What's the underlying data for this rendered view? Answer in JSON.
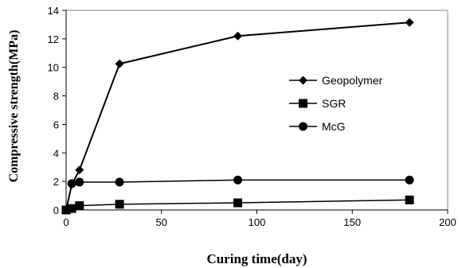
{
  "chart_data": {
    "type": "line",
    "title": "",
    "xlabel": "Curing time(day)",
    "ylabel": "Compressive strength(MPa)",
    "xlim": [
      0,
      200
    ],
    "ylim": [
      0,
      14
    ],
    "xticks": [
      0,
      50,
      100,
      150,
      200
    ],
    "yticks": [
      0,
      2,
      4,
      6,
      8,
      10,
      12,
      14
    ],
    "grid": false,
    "legend": "right",
    "series": [
      {
        "name": "Geopolymer",
        "marker": "diamond",
        "color": "#000000",
        "x": [
          0,
          3,
          7,
          28,
          90,
          180
        ],
        "y": [
          0,
          1.8,
          2.8,
          10.25,
          12.2,
          13.15
        ]
      },
      {
        "name": "SGR",
        "marker": "square",
        "color": "#000000",
        "x": [
          0,
          3,
          7,
          28,
          90,
          180
        ],
        "y": [
          0,
          0.1,
          0.3,
          0.4,
          0.5,
          0.7
        ]
      },
      {
        "name": "McG",
        "marker": "circle",
        "color": "#000000",
        "x": [
          0,
          3,
          7,
          28,
          90,
          180
        ],
        "y": [
          0,
          1.85,
          1.95,
          1.95,
          2.1,
          2.1
        ]
      }
    ]
  }
}
